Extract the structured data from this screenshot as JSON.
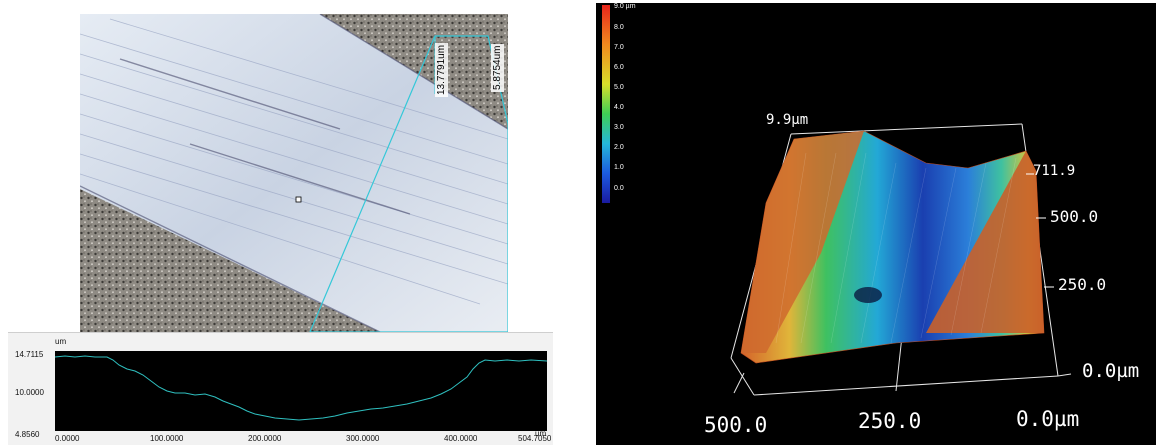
{
  "micrograph": {
    "measure_1": "13.7791um",
    "measure_2": "5.8754um"
  },
  "profile": {
    "unit_top": "um",
    "unit_right": "um",
    "y_ticks": [
      "14.7115",
      "10.0000",
      "4.8560"
    ],
    "x_ticks": [
      "0.0000",
      "100.0000",
      "200.0000",
      "300.0000",
      "400.0000",
      "504.7050"
    ]
  },
  "view3d": {
    "colorbar": [
      "9.0 µm",
      "8.0",
      "7.0",
      "6.0",
      "5.0",
      "4.0",
      "3.0",
      "2.0",
      "1.0",
      "0.0"
    ],
    "z_top_label": "9.9µm",
    "y_axis": [
      "711.9",
      "500.0",
      "250.0",
      "0.0µm"
    ],
    "x_axis": [
      "500.0",
      "250.0",
      "0.0µm"
    ]
  },
  "colors": {
    "profile_line": "#2fc0c0",
    "selection": "#34c8d8",
    "surface_high": "#d4622a",
    "surface_low": "#1a3fb0"
  }
}
